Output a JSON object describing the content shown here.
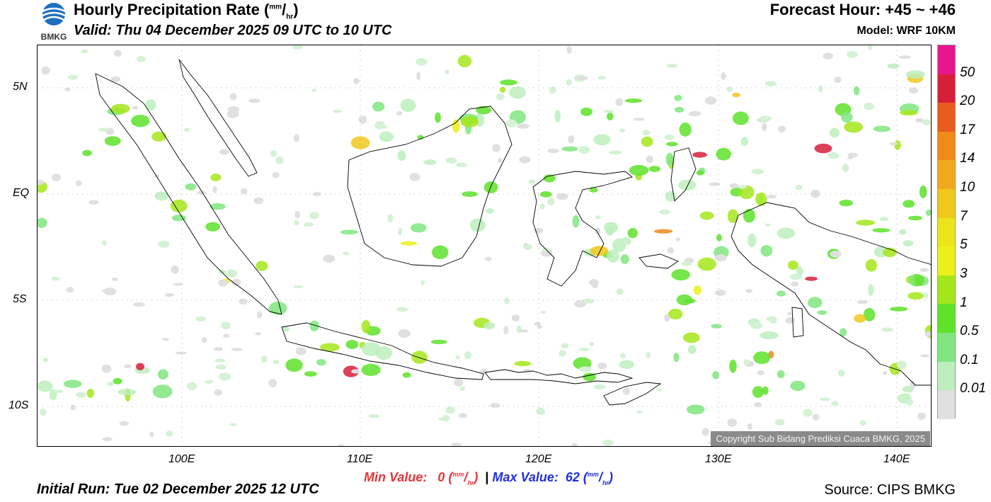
{
  "header": {
    "title_main": "Hourly Precipitation Rate (",
    "title_unit_sup": "mm",
    "title_unit_sub": "hr",
    "title_close": ")",
    "valid": "Valid: Thu 04 December 2025 09 UTC to 10 UTC",
    "forecast_hour": "Forecast Hour: +45 ~ +46",
    "model": "Model: WRF 10KM",
    "logo_text": "BMKG"
  },
  "map": {
    "lat_labels": [
      "5N",
      "EQ",
      "5S",
      "10S"
    ],
    "lon_labels": [
      "100E",
      "110E",
      "120E",
      "130E",
      "140E"
    ],
    "copyright": "Copyright Sub Bidang Prediksi Cuaca BMKG, 2025"
  },
  "colorbar": {
    "labels": [
      "50",
      "20",
      "17",
      "14",
      "10",
      "7",
      "5",
      "3",
      "1",
      "0.5",
      "0.1",
      "0.01"
    ],
    "colors": [
      "#e8168c",
      "#d6203a",
      "#e85c1e",
      "#f08a1a",
      "#f0a81e",
      "#f0c81c",
      "#ece41a",
      "#ecf01a",
      "#a4e61c",
      "#5ee22a",
      "#80e680",
      "#bdeebd",
      "#e0e0e0"
    ]
  },
  "stats": {
    "min_label": "Min Value:",
    "min_value": "0",
    "max_label": "Max Value:",
    "max_value": "62",
    "unit_sup": "mm",
    "unit_sub": "hr",
    "separator": "|"
  },
  "footer": {
    "initial_run": "Initial Run: Tue 02 December 2025 12 UTC",
    "source": "Source: CIPS BMKG"
  }
}
